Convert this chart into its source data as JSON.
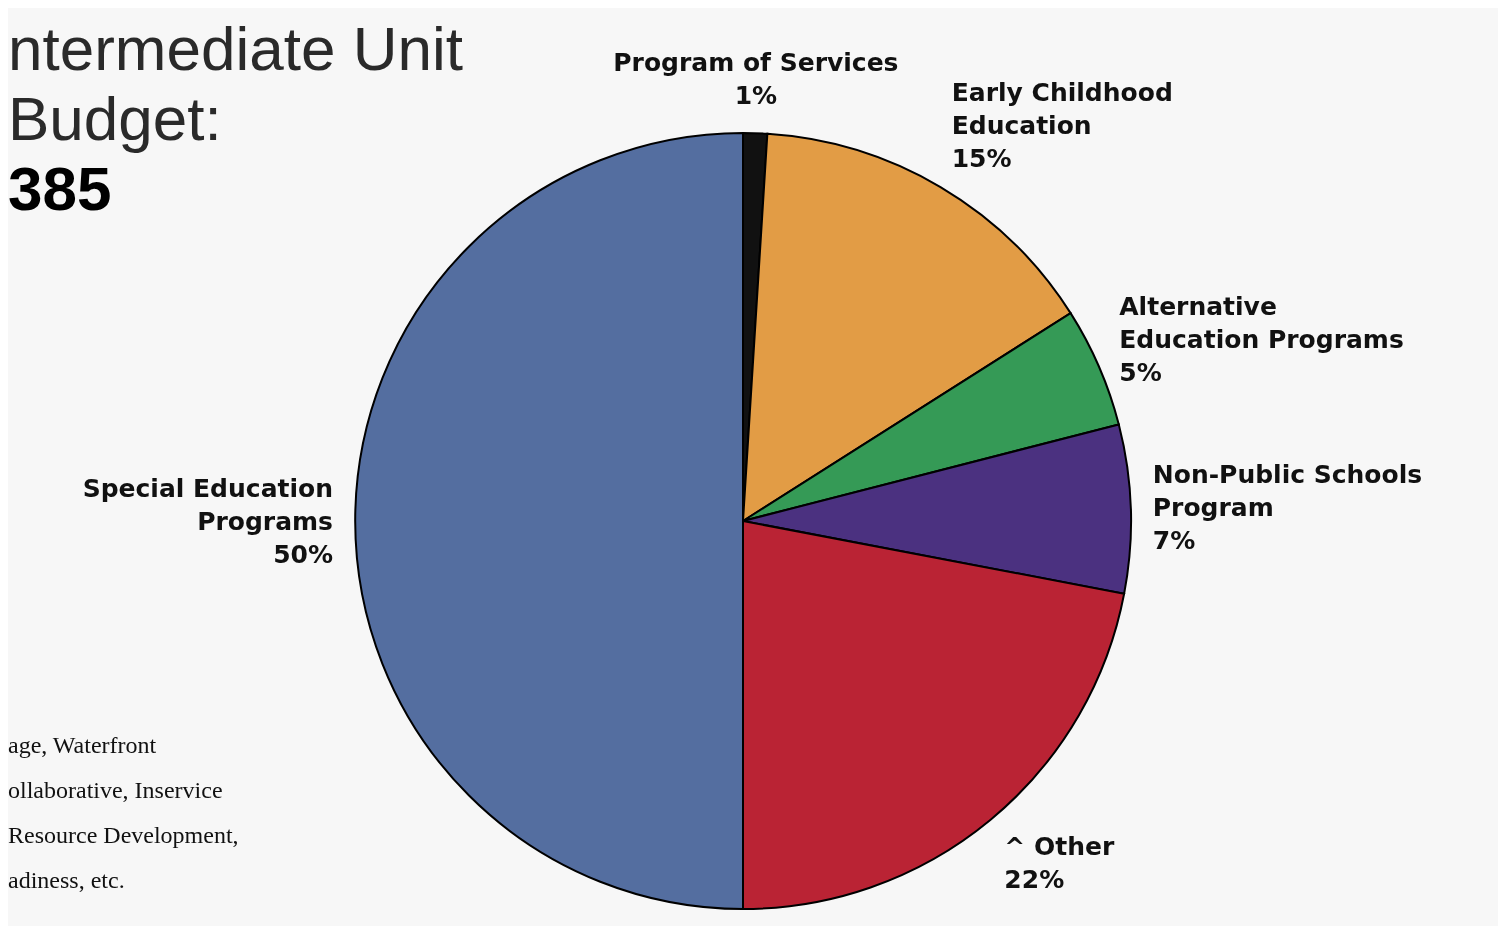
{
  "chart_data": {
    "type": "pie",
    "title": "ntermediate Unit Budget:",
    "subtitle": "385",
    "categories": [
      "Program of Services",
      "Early Childhood Education",
      "Alternative Education Programs",
      "Non-Public Schools Program",
      "^ Other",
      "Special Education Programs"
    ],
    "values": [
      1,
      15,
      5,
      7,
      22,
      50
    ],
    "value_labels": [
      "1%",
      "15%",
      "5%",
      "7%",
      "22%",
      "50%"
    ],
    "colors": [
      "#111111",
      "#e29c45",
      "#359a56",
      "#4b3180",
      "#ba2334",
      "#546ea0"
    ],
    "annotations": [
      "age, Waterfront",
      "ollaborative, Inservice",
      "Resource Development,",
      "adiness, etc."
    ]
  }
}
